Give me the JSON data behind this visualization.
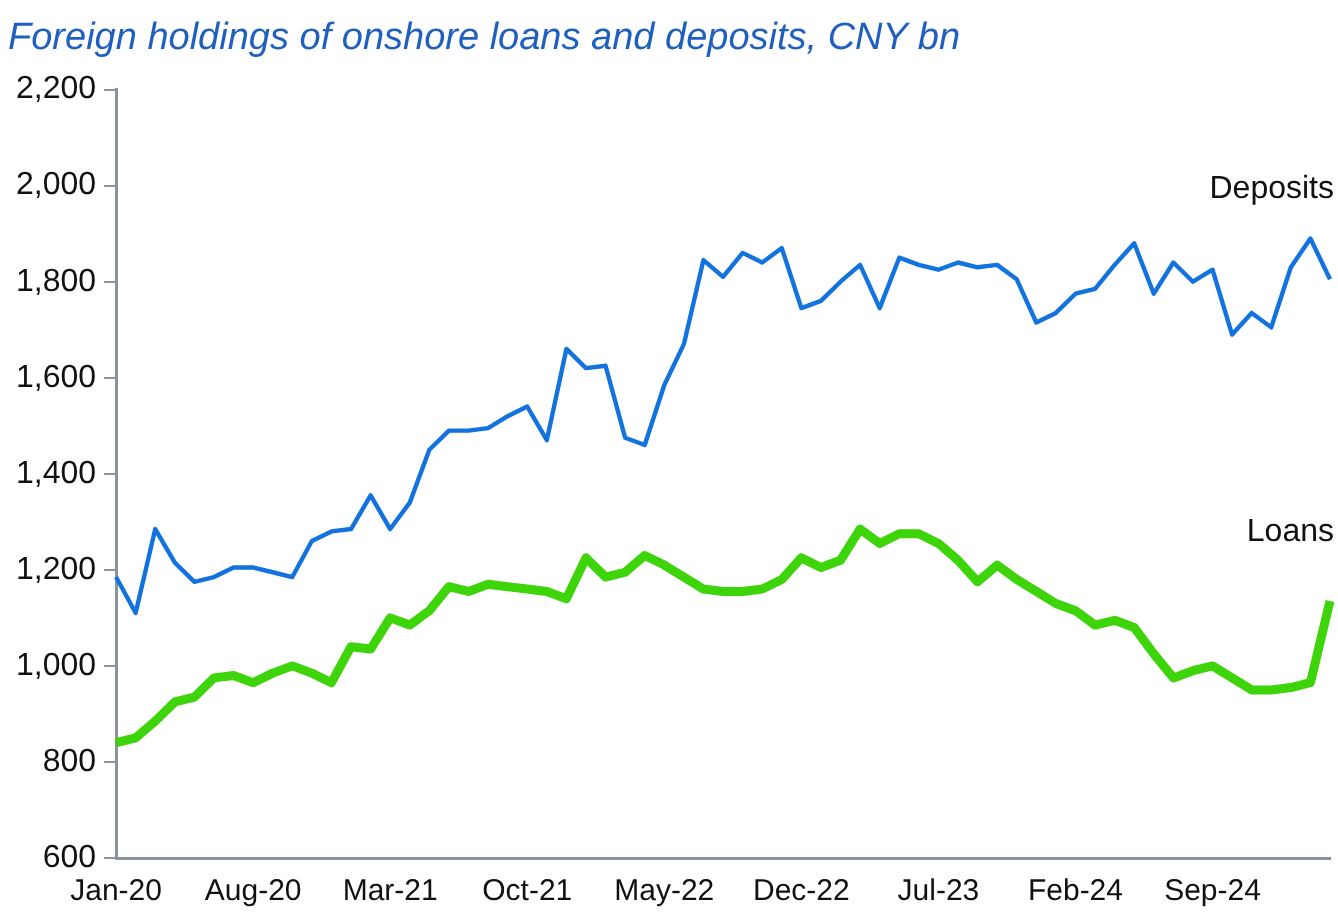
{
  "chart_data": {
    "type": "line",
    "title": "Foreign holdings of onshore loans and deposits, CNY bn",
    "categories": [
      "Jan-20",
      null,
      null,
      null,
      null,
      null,
      null,
      "Aug-20",
      null,
      null,
      null,
      null,
      null,
      null,
      "Mar-21",
      null,
      null,
      null,
      null,
      null,
      null,
      "Oct-21",
      null,
      null,
      null,
      null,
      null,
      null,
      "May-22",
      null,
      null,
      null,
      null,
      null,
      null,
      "Dec-22",
      null,
      null,
      null,
      null,
      null,
      null,
      "Jul-23",
      null,
      null,
      null,
      null,
      null,
      null,
      "Feb-24",
      null,
      null,
      null,
      null,
      null,
      null,
      "Sep-24",
      null,
      null,
      null,
      null,
      null,
      null
    ],
    "series": [
      {
        "name": "Deposits",
        "color": "#1273de",
        "values": [
          1185,
          1110,
          1285,
          1215,
          1175,
          1185,
          1205,
          1205,
          1195,
          1185,
          1260,
          1280,
          1285,
          1355,
          1285,
          1340,
          1450,
          1490,
          1490,
          1495,
          1520,
          1540,
          1470,
          1660,
          1620,
          1625,
          1475,
          1460,
          1585,
          1670,
          1845,
          1810,
          1860,
          1840,
          1870,
          1745,
          1760,
          1800,
          1835,
          1745,
          1850,
          1835,
          1825,
          1840,
          1830,
          1835,
          1805,
          1715,
          1735,
          1775,
          1785,
          1835,
          1880,
          1775,
          1840,
          1800,
          1825,
          1690,
          1735,
          1705,
          1830,
          1890,
          1805
        ]
      },
      {
        "name": "Loans",
        "color": "#3dd40a",
        "values": [
          840,
          850,
          885,
          925,
          935,
          975,
          980,
          965,
          985,
          1000,
          985,
          965,
          1040,
          1035,
          1100,
          1085,
          1115,
          1165,
          1155,
          1170,
          1165,
          1160,
          1155,
          1140,
          1225,
          1185,
          1195,
          1230,
          1210,
          1185,
          1160,
          1155,
          1155,
          1160,
          1180,
          1225,
          1205,
          1220,
          1285,
          1255,
          1275,
          1275,
          1255,
          1220,
          1175,
          1210,
          1180,
          1155,
          1130,
          1115,
          1085,
          1095,
          1080,
          1025,
          975,
          990,
          1000,
          975,
          950,
          950,
          955,
          965,
          1135
        ]
      }
    ],
    "ylim": [
      600,
      2200
    ],
    "yticks": [
      600,
      800,
      {
        "value": 1000,
        "label": "1,000"
      },
      {
        "value": 1200,
        "label": "1,200"
      },
      {
        "value": 1400,
        "label": "1,400"
      },
      {
        "value": 1600,
        "label": "1,600"
      },
      {
        "value": 1800,
        "label": "1,800"
      },
      {
        "value": 2000,
        "label": "2,000"
      },
      {
        "value": 2200,
        "label": "2,200"
      }
    ],
    "grid": false,
    "legend": false
  }
}
